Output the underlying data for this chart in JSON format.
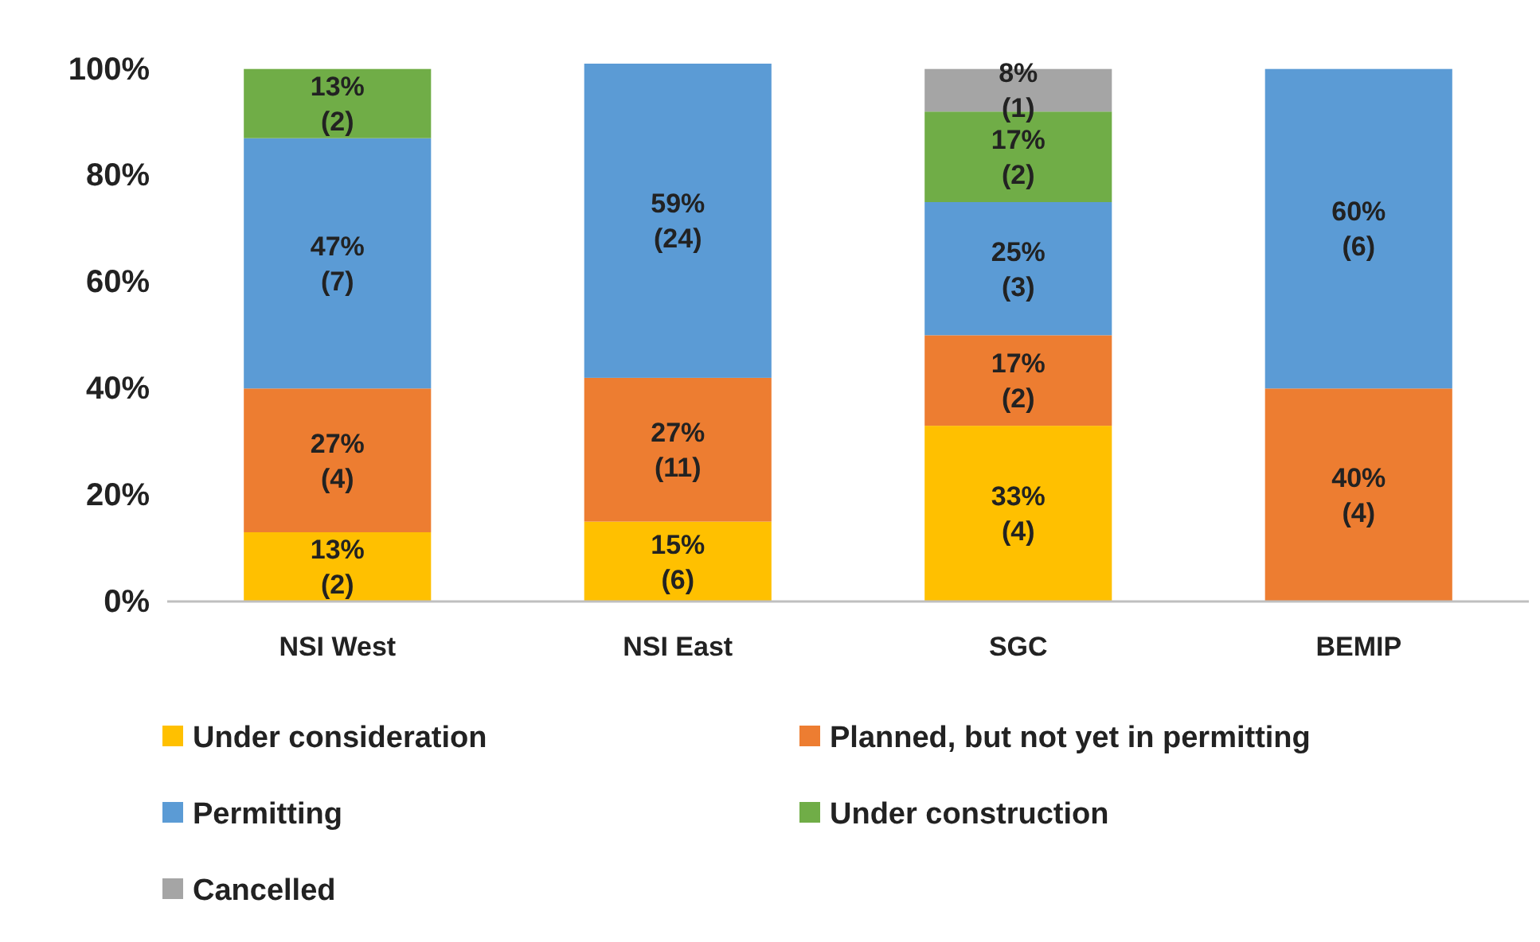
{
  "chart_data": {
    "type": "bar",
    "stacked": true,
    "categories": [
      "NSI West",
      "NSI East",
      "SGC",
      "BEMIP"
    ],
    "ylim": [
      0,
      101
    ],
    "yticks": [
      {
        "value": 0,
        "label": "0%"
      },
      {
        "value": 20,
        "label": "20%"
      },
      {
        "value": 40,
        "label": "40%"
      },
      {
        "value": 60,
        "label": "60%"
      },
      {
        "value": 80,
        "label": "80%"
      },
      {
        "value": 100,
        "label": "100%"
      }
    ],
    "legend": "bottom",
    "series": [
      {
        "name": "Under consideration",
        "color": "#ffc000",
        "values": [
          13,
          15,
          33,
          null
        ],
        "value_labels": [
          "13%\n(2)",
          "15%\n(6)",
          "33%\n(4)",
          null
        ]
      },
      {
        "name": "Planned, but not yet in permitting",
        "color": "#ed7d31",
        "values": [
          27,
          27,
          17,
          40
        ],
        "value_labels": [
          "27%\n(4)",
          "27%\n(11)",
          "17%\n(2)",
          "40%\n(4)"
        ]
      },
      {
        "name": "Permitting",
        "color": "#5b9bd5",
        "values": [
          47,
          59,
          25,
          60
        ],
        "value_labels": [
          "47%\n(7)",
          "59%\n(24)",
          "25%\n(3)",
          "60%\n(6)"
        ]
      },
      {
        "name": "Under construction",
        "color": "#70ad47",
        "values": [
          13,
          null,
          17,
          null
        ],
        "value_labels": [
          "13%\n(2)",
          null,
          "17%\n(2)",
          null
        ]
      },
      {
        "name": "Cancelled",
        "color": "#a5a5a5",
        "values": [
          null,
          null,
          8,
          null
        ],
        "value_labels": [
          null,
          null,
          "8%\n(1)",
          null
        ]
      }
    ]
  }
}
